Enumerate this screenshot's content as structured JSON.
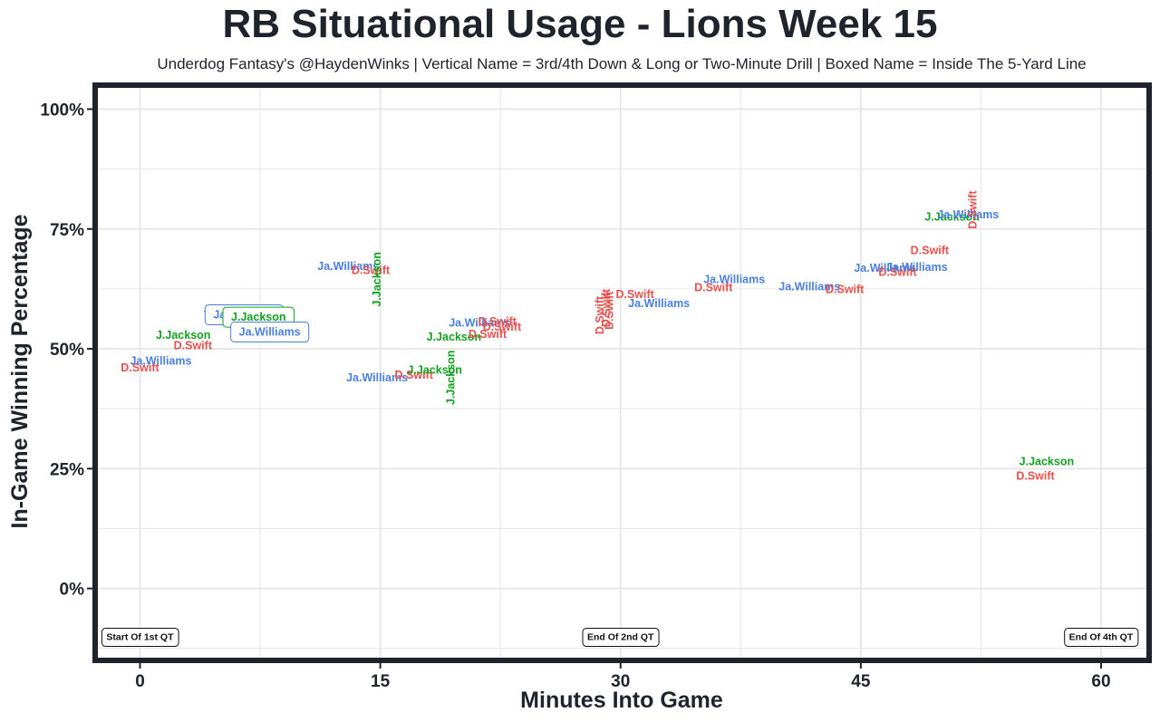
{
  "colors": {
    "D.Swift": "#e8514d",
    "Ja.Williams": "#4a7fe0",
    "J.Jackson": "#13a120",
    "frame": "#1f232b",
    "grid": "#e6e6e6"
  },
  "chart_data": {
    "type": "scatter",
    "title": "RB Situational Usage - Lions Week 15",
    "subtitle": "Underdog Fantasy's @HaydenWinks | Vertical Name = 3rd/4th Down & Long or Two-Minute Drill | Boxed Name = Inside The 5-Yard Line",
    "xlabel": "Minutes Into Game",
    "ylabel": "In-Game Winning Percentage",
    "xlim": [
      -2.8,
      63
    ],
    "ylim": [
      -15,
      105
    ],
    "x_ticks": [
      {
        "value": 0,
        "label": "0"
      },
      {
        "value": 15,
        "label": "15"
      },
      {
        "value": 30,
        "label": "30"
      },
      {
        "value": 45,
        "label": "45"
      },
      {
        "value": 60,
        "label": "60"
      }
    ],
    "y_ticks": [
      {
        "value": 0,
        "label": "0%"
      },
      {
        "value": 25,
        "label": "25%"
      },
      {
        "value": 50,
        "label": "50%"
      },
      {
        "value": 75,
        "label": "75%"
      },
      {
        "value": 100,
        "label": "100%"
      }
    ],
    "grid": true,
    "legend": "none",
    "annotations": [
      {
        "text": "Start Of 1st QT",
        "x": 0,
        "y": -10
      },
      {
        "text": "End Of 2nd QT",
        "x": 30,
        "y": -10
      },
      {
        "text": "End Of 4th QT",
        "x": 60,
        "y": -10
      }
    ],
    "points": [
      {
        "player": "D.Swift",
        "x": 0,
        "y": 46,
        "vertical": false,
        "boxed": false
      },
      {
        "player": "Ja.Williams",
        "x": 1.3,
        "y": 47.5,
        "vertical": false,
        "boxed": false
      },
      {
        "player": "J.Jackson",
        "x": 2.7,
        "y": 52.8,
        "vertical": false,
        "boxed": false
      },
      {
        "player": "D.Swift",
        "x": 3.3,
        "y": 50.7,
        "vertical": false,
        "boxed": false
      },
      {
        "player": "Ja.Williams",
        "x": 5.9,
        "y": 58.2,
        "vertical": false,
        "boxed": false
      },
      {
        "player": "Ja.Williams",
        "x": 6.5,
        "y": 57.1,
        "vertical": false,
        "boxed": true
      },
      {
        "player": "J.Jackson",
        "x": 7.4,
        "y": 56.6,
        "vertical": false,
        "boxed": true
      },
      {
        "player": "Ja.Williams",
        "x": 8.1,
        "y": 53.5,
        "vertical": false,
        "boxed": true
      },
      {
        "player": "Ja.Williams",
        "x": 13,
        "y": 67.2,
        "vertical": false,
        "boxed": false
      },
      {
        "player": "D.Swift",
        "x": 14.4,
        "y": 66.4,
        "vertical": false,
        "boxed": false
      },
      {
        "player": "J.Jackson",
        "x": 14.8,
        "y": 64.5,
        "vertical": true,
        "boxed": false
      },
      {
        "player": "Ja.Williams",
        "x": 14.8,
        "y": 44,
        "vertical": false,
        "boxed": false
      },
      {
        "player": "D.Swift",
        "x": 17.1,
        "y": 44.5,
        "vertical": false,
        "boxed": false
      },
      {
        "player": "J.Jackson",
        "x": 18.4,
        "y": 45.6,
        "vertical": false,
        "boxed": false
      },
      {
        "player": "J.Jackson",
        "x": 19.4,
        "y": 44,
        "vertical": true,
        "boxed": false
      },
      {
        "player": "J.Jackson",
        "x": 19.6,
        "y": 52.5,
        "vertical": false,
        "boxed": false
      },
      {
        "player": "Ja.Williams",
        "x": 21.2,
        "y": 55.4,
        "vertical": false,
        "boxed": false
      },
      {
        "player": "D.Swift",
        "x": 21.7,
        "y": 53,
        "vertical": false,
        "boxed": false
      },
      {
        "player": "D.Swift",
        "x": 22.3,
        "y": 55.7,
        "vertical": false,
        "boxed": false
      },
      {
        "player": "D.Swift",
        "x": 22.6,
        "y": 54.5,
        "vertical": false,
        "boxed": false
      },
      {
        "player": "D.Swift",
        "x": 28.7,
        "y": 57,
        "vertical": true,
        "boxed": false
      },
      {
        "player": "D.Swift",
        "x": 29.1,
        "y": 58.5,
        "vertical": true,
        "boxed": false
      },
      {
        "player": "D.Swift",
        "x": 29.3,
        "y": 58,
        "vertical": true,
        "boxed": false
      },
      {
        "player": "D.Swift",
        "x": 30.9,
        "y": 61.3,
        "vertical": false,
        "boxed": false
      },
      {
        "player": "Ja.Williams",
        "x": 32.4,
        "y": 59.5,
        "vertical": false,
        "boxed": false
      },
      {
        "player": "D.Swift",
        "x": 35.8,
        "y": 62.8,
        "vertical": false,
        "boxed": false
      },
      {
        "player": "Ja.Williams",
        "x": 37.1,
        "y": 64.5,
        "vertical": false,
        "boxed": false
      },
      {
        "player": "Ja.Williams",
        "x": 41.8,
        "y": 63,
        "vertical": false,
        "boxed": false
      },
      {
        "player": "D.Swift",
        "x": 44,
        "y": 62.4,
        "vertical": false,
        "boxed": false
      },
      {
        "player": "Ja.Williams",
        "x": 46.5,
        "y": 66.8,
        "vertical": false,
        "boxed": false
      },
      {
        "player": "D.Swift",
        "x": 47.3,
        "y": 66,
        "vertical": false,
        "boxed": false
      },
      {
        "player": "Ja.Williams",
        "x": 48.5,
        "y": 67,
        "vertical": false,
        "boxed": false
      },
      {
        "player": "D.Swift",
        "x": 49.3,
        "y": 70.5,
        "vertical": false,
        "boxed": false
      },
      {
        "player": "J.Jackson",
        "x": 50.7,
        "y": 77.5,
        "vertical": false,
        "boxed": false
      },
      {
        "player": "Ja.Williams",
        "x": 51.7,
        "y": 78,
        "vertical": false,
        "boxed": false
      },
      {
        "player": "D.Swift",
        "x": 52,
        "y": 79,
        "vertical": true,
        "boxed": false
      },
      {
        "player": "J.Jackson",
        "x": 56.6,
        "y": 26.5,
        "vertical": false,
        "boxed": false
      },
      {
        "player": "D.Swift",
        "x": 55.9,
        "y": 23.5,
        "vertical": false,
        "boxed": false
      }
    ]
  }
}
